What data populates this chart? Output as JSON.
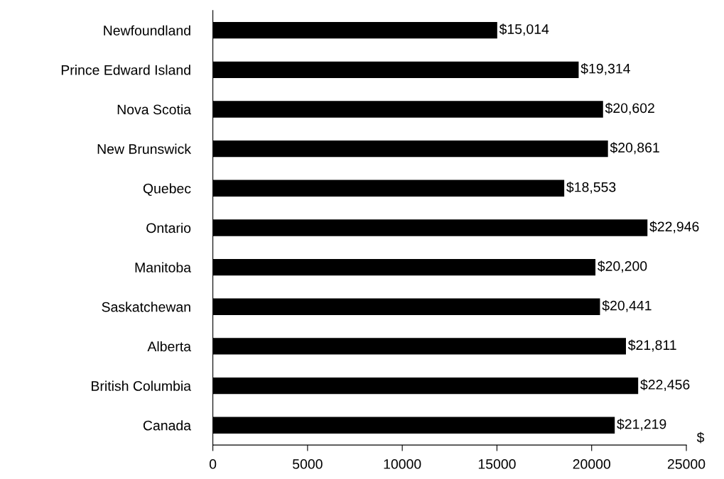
{
  "chart_data": {
    "type": "bar",
    "orientation": "horizontal",
    "xlabel": "$",
    "categories": [
      "Newfoundland",
      "Prince Edward Island",
      "Nova Scotia",
      "New Brunswick",
      "Quebec",
      "Ontario",
      "Manitoba",
      "Saskatchewan",
      "Alberta",
      "British Columbia",
      "Canada"
    ],
    "values": [
      15014,
      19314,
      20602,
      20861,
      18553,
      22946,
      20200,
      20441,
      21811,
      22456,
      21219
    ],
    "value_labels": [
      "$15,014",
      "$19,314",
      "$20,602",
      "$20,861",
      "$18,553",
      "$22,946",
      "$20,200",
      "$20,441",
      "$21,811",
      "$22,456",
      "$21,219"
    ],
    "color": "#000000",
    "xlim": [
      0,
      25000
    ],
    "xticks": [
      0,
      5000,
      10000,
      15000,
      20000,
      25000
    ],
    "grid": false,
    "legend": false
  }
}
